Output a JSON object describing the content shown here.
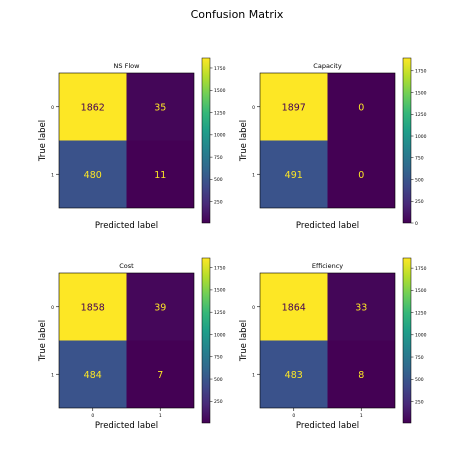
{
  "figure": {
    "title": "Confusion Matrix"
  },
  "colormap": [
    "#440154",
    "#482878",
    "#3e4989",
    "#31688e",
    "#26828e",
    "#1f9e89",
    "#35b779",
    "#6ece58",
    "#b5de2b",
    "#fde725"
  ],
  "chart_data": [
    {
      "type": "heatmap",
      "title": "NS Flow",
      "xlabel": "Predicted label",
      "ylabel": "True label",
      "x_ticks": [],
      "y_ticks": [
        "0",
        "1"
      ],
      "matrix": [
        [
          1862,
          35
        ],
        [
          480,
          11
        ]
      ],
      "colorbar": {
        "ticks": [
          250,
          500,
          750,
          1000,
          1250,
          1500,
          1750
        ],
        "range": [
          11,
          1862
        ]
      }
    },
    {
      "type": "heatmap",
      "title": "Capacity",
      "xlabel": "Predicted label",
      "ylabel": "True label",
      "x_ticks": [],
      "y_ticks": [
        "0",
        "1"
      ],
      "matrix": [
        [
          1897,
          0
        ],
        [
          491,
          0
        ]
      ],
      "colorbar": {
        "ticks": [
          0,
          250,
          500,
          750,
          1000,
          1250,
          1500,
          1750
        ],
        "range": [
          0,
          1897
        ]
      }
    },
    {
      "type": "heatmap",
      "title": "Cost",
      "xlabel": "Predicted label",
      "ylabel": "True label",
      "x_ticks": [
        "0",
        "1"
      ],
      "y_ticks": [
        "0",
        "1"
      ],
      "matrix": [
        [
          1858,
          39
        ],
        [
          484,
          7
        ]
      ],
      "colorbar": {
        "ticks": [
          250,
          500,
          750,
          1000,
          1250,
          1500,
          1750
        ],
        "range": [
          7,
          1858
        ]
      }
    },
    {
      "type": "heatmap",
      "title": "Efficiency",
      "xlabel": "Predicted label",
      "ylabel": "True label",
      "x_ticks": [
        "0",
        "1"
      ],
      "y_ticks": [
        "0",
        "1"
      ],
      "matrix": [
        [
          1864,
          33
        ],
        [
          483,
          8
        ]
      ],
      "colorbar": {
        "ticks": [
          250,
          500,
          750,
          1000,
          1250,
          1500,
          1750
        ],
        "range": [
          8,
          1864
        ]
      }
    }
  ]
}
